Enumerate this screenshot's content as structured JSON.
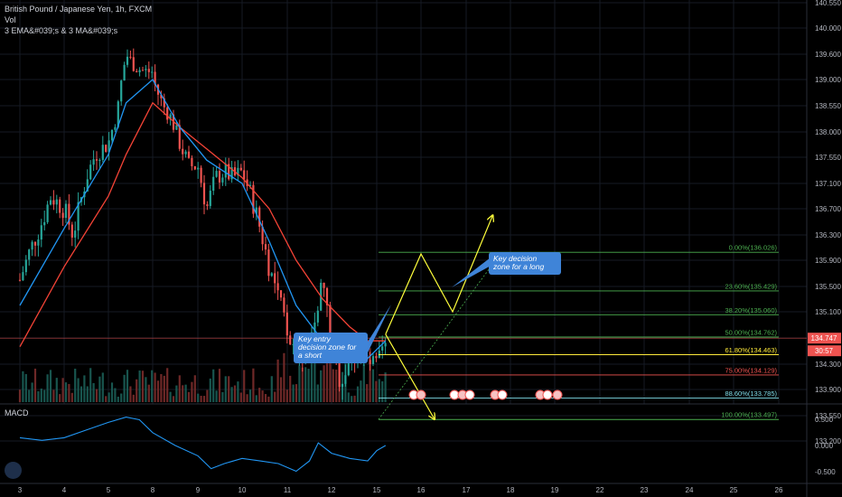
{
  "legend": {
    "title": "British Pound / Japanese Yen, 1h, FXCM",
    "line2": "Vol",
    "line3": "3 EMA&#039;s & 3 MA&#039;s"
  },
  "macd_label": "MACD",
  "colors": {
    "up": "#26a69a",
    "down": "#ef5350",
    "ema_blue": "#2196f3",
    "ema_red": "#f44336",
    "arrow": "#ffff3b",
    "annotation": "#3f84d8",
    "fib_green": "#4caf50",
    "fib_red": "#ef5350",
    "fib_yellow": "#ffeb3b",
    "fib_cyan": "#80deea"
  },
  "chart_data": {
    "type": "candlestick",
    "symbol": "British Pound / Japanese Yen, 1h, FXCM",
    "price_axis": {
      "ticks": [
        "140.550",
        "140.000",
        "139.600",
        "139.000",
        "138.550",
        "138.000",
        "137.550",
        "137.100",
        "136.700",
        "136.300",
        "135.900",
        "135.500",
        "135.100",
        "134.747",
        "134.300",
        "133.900",
        "133.550",
        "133.200"
      ],
      "current_price": "134.747",
      "countdown": "30:57"
    },
    "time_axis": {
      "ticks": [
        "3",
        "4",
        "5",
        "8",
        "9",
        "10",
        "11",
        "12",
        "15",
        "16",
        "17",
        "18",
        "19",
        "22",
        "23",
        "24",
        "25",
        "26"
      ]
    },
    "price_path": [
      [
        3,
        135.6
      ],
      [
        3.2,
        136.0
      ],
      [
        3.5,
        136.5
      ],
      [
        3.7,
        136.9
      ],
      [
        4.0,
        136.7
      ],
      [
        4.2,
        136.3
      ],
      [
        4.5,
        137.2
      ],
      [
        4.7,
        137.6
      ],
      [
        5.0,
        137.8
      ],
      [
        5.2,
        138.4
      ],
      [
        5.4,
        139.6
      ],
      [
        5.6,
        139.3
      ],
      [
        5.8,
        139.2
      ],
      [
        8.0,
        139.0
      ],
      [
        8.2,
        138.6
      ],
      [
        8.4,
        138.3
      ],
      [
        8.6,
        137.8
      ],
      [
        8.8,
        137.4
      ],
      [
        9.0,
        137.4
      ],
      [
        9.2,
        136.7
      ],
      [
        9.4,
        137.2
      ],
      [
        9.6,
        137.3
      ],
      [
        9.8,
        137.2
      ],
      [
        10.0,
        137.3
      ],
      [
        10.2,
        136.9
      ],
      [
        10.4,
        136.4
      ],
      [
        10.6,
        135.8
      ],
      [
        10.8,
        135.3
      ],
      [
        11.0,
        134.9
      ],
      [
        11.2,
        134.5
      ],
      [
        11.4,
        134.3
      ],
      [
        11.6,
        135.0
      ],
      [
        11.8,
        135.6
      ],
      [
        12.0,
        134.6
      ],
      [
        12.2,
        134.0
      ],
      [
        12.4,
        134.4
      ],
      [
        12.6,
        134.5
      ],
      [
        12.8,
        134.3
      ],
      [
        15.0,
        134.3
      ],
      [
        15.2,
        134.6
      ]
    ],
    "ema_fast": [
      [
        3,
        135.2
      ],
      [
        4,
        136.4
      ],
      [
        5,
        137.6
      ],
      [
        5.4,
        138.6
      ],
      [
        8.0,
        139.0
      ],
      [
        8.6,
        138.1
      ],
      [
        9.2,
        137.5
      ],
      [
        10.0,
        137.1
      ],
      [
        10.6,
        136.2
      ],
      [
        11.2,
        135.2
      ],
      [
        11.8,
        134.7
      ],
      [
        12.4,
        134.4
      ],
      [
        12.8,
        134.4
      ],
      [
        15.2,
        134.7
      ]
    ],
    "ema_slow": [
      [
        3,
        134.6
      ],
      [
        4,
        135.8
      ],
      [
        5,
        136.9
      ],
      [
        5.4,
        137.6
      ],
      [
        8.0,
        138.6
      ],
      [
        8.6,
        138.1
      ],
      [
        9.2,
        137.7
      ],
      [
        10.0,
        137.2
      ],
      [
        10.6,
        136.7
      ],
      [
        11.2,
        135.9
      ],
      [
        11.8,
        135.3
      ],
      [
        12.4,
        134.9
      ],
      [
        12.8,
        134.7
      ],
      [
        15.2,
        134.7
      ]
    ],
    "fibonacci": [
      {
        "label": "0.00%(136.026)",
        "price": 136.026,
        "color": "#4caf50"
      },
      {
        "label": "23.60%(135.429)",
        "price": 135.429,
        "color": "#4caf50"
      },
      {
        "label": "38.20%(135.060)",
        "price": 135.06,
        "color": "#4caf50"
      },
      {
        "label": "50.00%(134.762)",
        "price": 134.762,
        "color": "#4caf50"
      },
      {
        "label": "61.80%(134.463)",
        "price": 134.463,
        "color": "#ffeb3b"
      },
      {
        "label": "75.00%(134.129)",
        "price": 134.129,
        "color": "#ef5350"
      },
      {
        "label": "88.60%(133.785)",
        "price": 133.785,
        "color": "#80deea"
      },
      {
        "label": "100.00%(133.497)",
        "price": 133.497,
        "color": "#4caf50"
      }
    ],
    "annotations": [
      {
        "text": [
          "Key entry",
          "decision zone for",
          "a short"
        ],
        "anchor_day": 15.1,
        "anchor_price": 134.7
      },
      {
        "text": [
          "Key decision",
          "zone for a long"
        ],
        "anchor_day": 16.7,
        "anchor_price": 135.1
      }
    ],
    "projection_short": [
      [
        15.2,
        134.8
      ],
      [
        16.3,
        133.5
      ]
    ],
    "projection_long": [
      [
        15.2,
        134.8
      ],
      [
        16.0,
        136.0
      ],
      [
        16.7,
        135.1
      ],
      [
        17.6,
        136.6
      ]
    ],
    "macd": {
      "label": "MACD",
      "ticks": [
        "0.500",
        "0.000",
        "-0.500"
      ],
      "line": [
        [
          3,
          0.15
        ],
        [
          3.5,
          0.1
        ],
        [
          4,
          0.15
        ],
        [
          4.5,
          0.3
        ],
        [
          5,
          0.45
        ],
        [
          5.4,
          0.55
        ],
        [
          5.7,
          0.5
        ],
        [
          8.0,
          0.25
        ],
        [
          8.5,
          0.0
        ],
        [
          9.0,
          -0.2
        ],
        [
          9.3,
          -0.45
        ],
        [
          9.6,
          -0.35
        ],
        [
          10.0,
          -0.25
        ],
        [
          10.4,
          -0.3
        ],
        [
          10.8,
          -0.35
        ],
        [
          11.2,
          -0.5
        ],
        [
          11.5,
          -0.3
        ],
        [
          11.7,
          0.05
        ],
        [
          12.0,
          -0.15
        ],
        [
          12.4,
          -0.25
        ],
        [
          12.8,
          -0.3
        ],
        [
          15.0,
          -0.1
        ],
        [
          15.2,
          0.0
        ]
      ]
    }
  }
}
